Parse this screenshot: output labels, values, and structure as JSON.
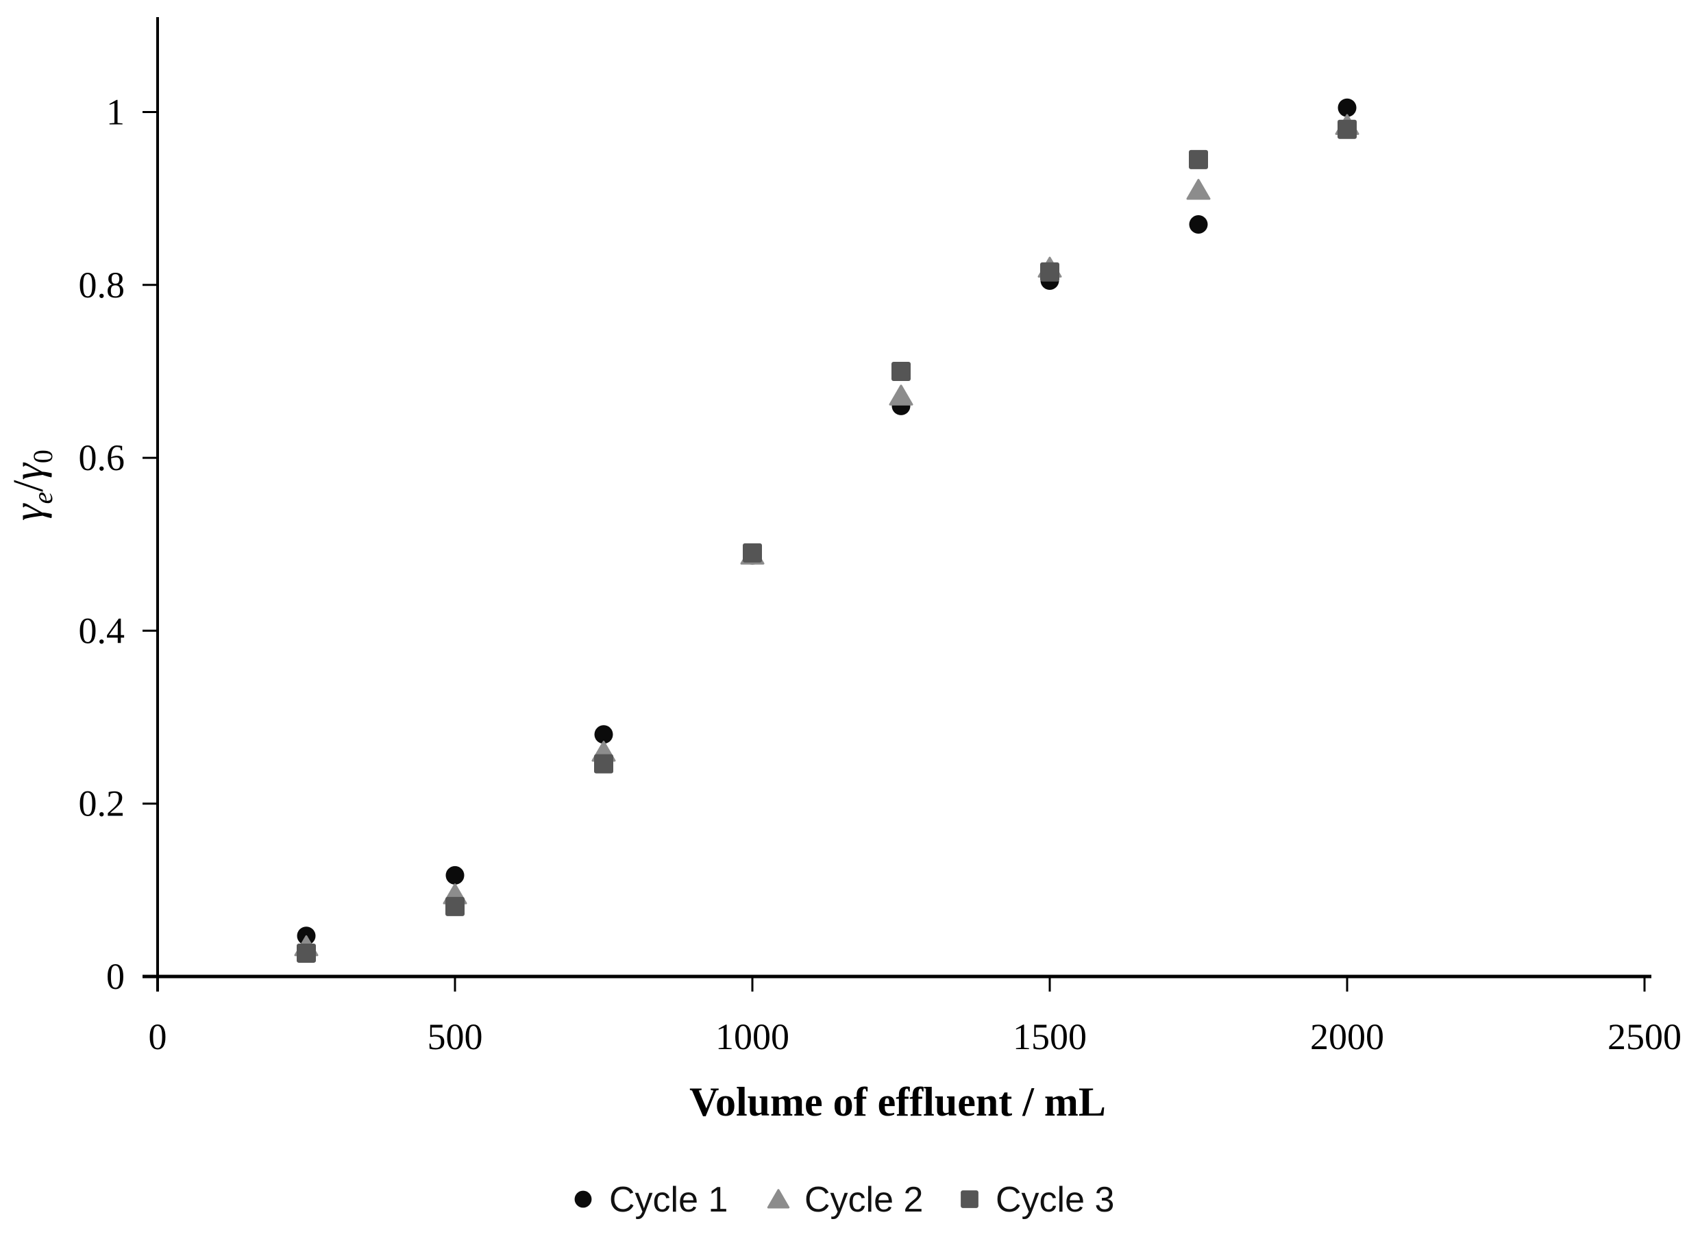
{
  "chart_data": {
    "type": "scatter",
    "title": "",
    "xlabel": "Volume of effluent / mL",
    "ylabel": "γe/γ0",
    "ylabel_parts": {
      "gamma1": "γ",
      "sub_e": "e",
      "slash": "/",
      "gamma2": "γ",
      "sub_0": "0"
    },
    "xlim": [
      0,
      2500
    ],
    "ylim": [
      0,
      1.1
    ],
    "grid": false,
    "legend_position": "bottom",
    "x_ticks": [
      0,
      500,
      1000,
      1500,
      2000,
      2500
    ],
    "x_tick_labels": [
      "0",
      "500",
      "1000",
      "1500",
      "2000",
      "2500"
    ],
    "y_ticks": [
      0,
      0.2,
      0.4,
      0.6,
      0.8,
      1
    ],
    "y_tick_labels": [
      "0",
      "0.2",
      "0.4",
      "0.6",
      "0.8",
      "1"
    ],
    "x": [
      250,
      500,
      750,
      1000,
      1250,
      1500,
      1750,
      2000
    ],
    "series": [
      {
        "name": "Cycle 1",
        "marker": "circle",
        "color": "#0b0b0b",
        "values": [
          0.047,
          0.117,
          0.28,
          0.487,
          0.66,
          0.805,
          0.87,
          1.005
        ]
      },
      {
        "name": "Cycle 2",
        "marker": "triangle",
        "color": "#8c8c8c",
        "values": [
          0.035,
          0.095,
          0.26,
          0.488,
          0.672,
          0.82,
          0.91,
          0.985
        ]
      },
      {
        "name": "Cycle 3",
        "marker": "square",
        "color": "#555555",
        "values": [
          0.027,
          0.081,
          0.246,
          0.49,
          0.7,
          0.815,
          0.945,
          0.98
        ]
      }
    ],
    "axis_color": "#000000"
  }
}
